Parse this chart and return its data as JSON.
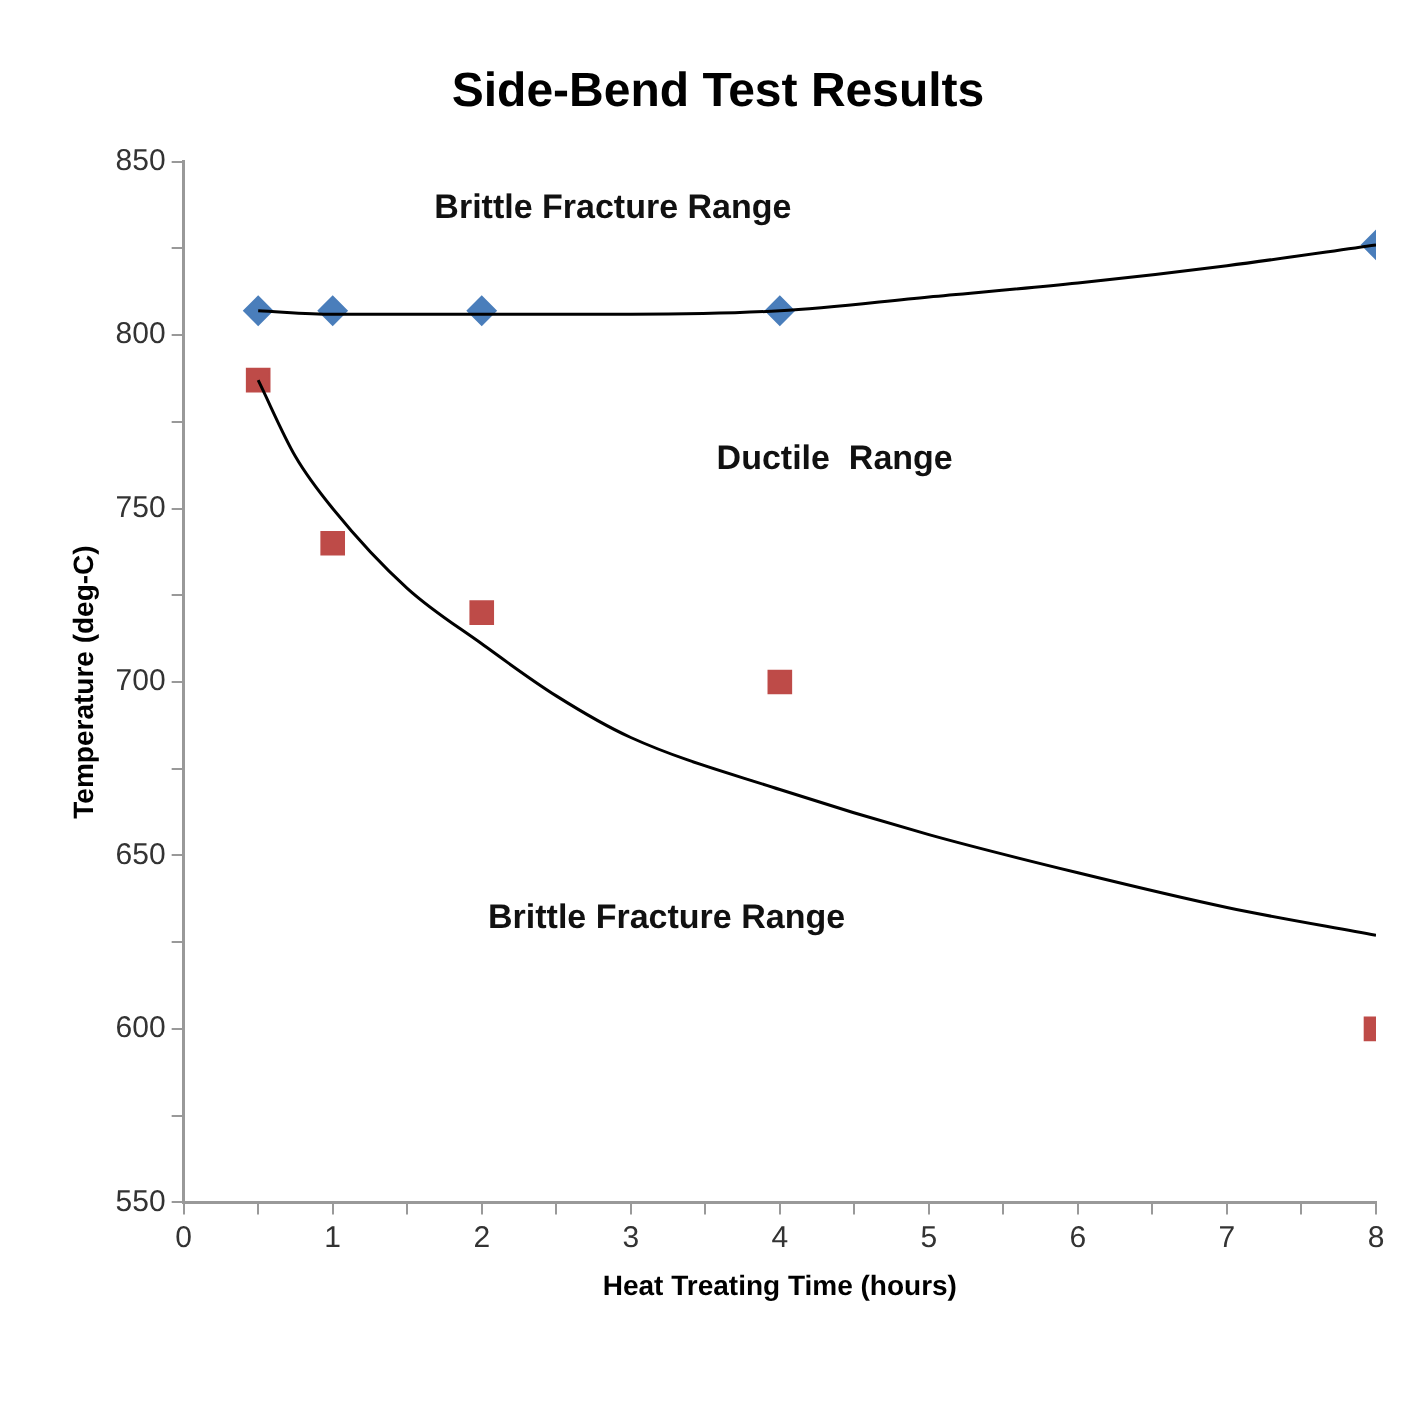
{
  "chart_data": {
    "type": "scatter",
    "title": "Side-Bend Test Results",
    "xlabel": "Heat Treating Time (hours)",
    "ylabel": "Temperature (deg-C)",
    "series": [
      {
        "type": "line",
        "color": "#000000",
        "marker": "none",
        "line_style": "solid",
        "x": [
          0.5,
          1,
          2,
          3,
          4,
          5,
          6,
          7,
          8
        ],
        "values": [
          807,
          806,
          806,
          806,
          807,
          811,
          815,
          820,
          826
        ]
      },
      {
        "type": "line",
        "color": "#000000",
        "marker": "none",
        "line_style": "solid",
        "x": [
          0.5,
          0.75,
          1,
          1.5,
          2,
          2.5,
          3,
          4,
          5,
          6,
          7,
          8
        ],
        "values": [
          787,
          765,
          750,
          727,
          711,
          696,
          684,
          669,
          656,
          645,
          635,
          627
        ]
      },
      {
        "type": "scatter",
        "color": "#4a7ebb",
        "marker": "diamond",
        "x": [
          0.5,
          1,
          2,
          4,
          8
        ],
        "values": [
          807,
          807,
          807,
          807,
          826
        ]
      },
      {
        "type": "scatter",
        "color": "#be4b48",
        "marker": "square",
        "x": [
          0.5,
          1,
          2,
          4,
          8
        ],
        "values": [
          787,
          740,
          720,
          700,
          600
        ]
      }
    ],
    "xlim": [
      0,
      8
    ],
    "xticks": [
      0,
      {
        "value": 0.5,
        "label": null
      },
      1,
      {
        "value": 1.5,
        "label": null
      },
      2,
      {
        "value": 2.5,
        "label": null
      },
      3,
      {
        "value": 3.5,
        "label": null
      },
      4,
      {
        "value": 4.5,
        "label": null
      },
      5,
      {
        "value": 5.5,
        "label": null
      },
      6,
      {
        "value": 6.5,
        "label": null
      },
      7,
      {
        "value": 7.5,
        "label": null
      },
      8
    ],
    "ylim": [
      550,
      850
    ],
    "yticks": [
      550,
      {
        "value": 575,
        "label": null
      },
      600,
      {
        "value": 625,
        "label": null
      },
      650,
      {
        "value": 675,
        "label": null
      },
      700,
      {
        "value": 725,
        "label": null
      },
      750,
      {
        "value": 775,
        "label": null
      },
      800,
      {
        "value": 825,
        "label": null
      },
      850
    ],
    "grid": false,
    "legend": false,
    "annotations": [
      "Brittle Fracture Range",
      "Ductile  Range",
      "Brittle Fracture Range"
    ]
  }
}
